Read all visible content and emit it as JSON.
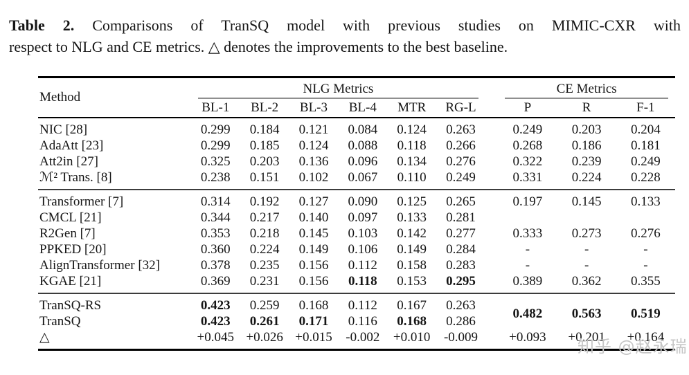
{
  "caption": {
    "label": "Table 2.",
    "line1_rest": "Comparisons of TranSQ model with previous studies on MIMIC-CXR with",
    "line2": "respect to NLG and CE metrics. △ denotes the improvements to the best baseline."
  },
  "table": {
    "method_header": "Method",
    "groups": [
      {
        "label": "NLG Metrics",
        "span": 6
      },
      {
        "label": "CE Metrics",
        "span": 3
      }
    ],
    "columns": [
      "BL-1",
      "BL-2",
      "BL-3",
      "BL-4",
      "MTR",
      "RG-L",
      "P",
      "R",
      "F-1"
    ],
    "blocks": [
      {
        "rows": [
          {
            "method": "NIC [28]",
            "cells": [
              "0.299",
              "0.184",
              "0.121",
              "0.084",
              "0.124",
              "0.263",
              "0.249",
              "0.203",
              "0.204"
            ]
          },
          {
            "method": "AdaAtt [23]",
            "cells": [
              "0.299",
              "0.185",
              "0.124",
              "0.088",
              "0.118",
              "0.266",
              "0.268",
              "0.186",
              "0.181"
            ]
          },
          {
            "method": "Att2in [27]",
            "cells": [
              "0.325",
              "0.203",
              "0.136",
              "0.096",
              "0.134",
              "0.276",
              "0.322",
              "0.239",
              "0.249"
            ]
          },
          {
            "method": "ℳ² Trans. [8]",
            "cells": [
              "0.238",
              "0.151",
              "0.102",
              "0.067",
              "0.110",
              "0.249",
              "0.331",
              "0.224",
              "0.228"
            ]
          }
        ]
      },
      {
        "rows": [
          {
            "method": "Transformer [7]",
            "cells": [
              "0.314",
              "0.192",
              "0.127",
              "0.090",
              "0.125",
              "0.265",
              "0.197",
              "0.145",
              "0.133"
            ]
          },
          {
            "method": "CMCL [21]",
            "cells": [
              "0.344",
              "0.217",
              "0.140",
              "0.097",
              "0.133",
              "0.281",
              "",
              "",
              ""
            ]
          },
          {
            "method": "R2Gen [7]",
            "cells": [
              "0.353",
              "0.218",
              "0.145",
              "0.103",
              "0.142",
              "0.277",
              "0.333",
              "0.273",
              "0.276"
            ]
          },
          {
            "method": "PPKED [20]",
            "cells": [
              "0.360",
              "0.224",
              "0.149",
              "0.106",
              "0.149",
              "0.284",
              "-",
              "-",
              "-"
            ]
          },
          {
            "method": "AlignTransformer [32]",
            "cells": [
              "0.378",
              "0.235",
              "0.156",
              "0.112",
              "0.158",
              "0.283",
              "-",
              "-",
              "-"
            ]
          },
          {
            "method": "KGAE [21]",
            "cells": [
              "0.369",
              "0.231",
              "0.156",
              {
                "t": "0.118",
                "bold": true
              },
              "0.153",
              {
                "t": "0.295",
                "bold": true
              },
              "0.389",
              "0.362",
              "0.355"
            ]
          }
        ]
      },
      {
        "rows": [
          {
            "method": "TranSQ-RS",
            "cells": [
              {
                "t": "0.423",
                "bold": true
              },
              "0.259",
              "0.168",
              "0.112",
              "0.167",
              "0.263",
              {
                "t": "0.482",
                "bold": true,
                "rowspan": 2
              },
              {
                "t": "0.563",
                "bold": true,
                "rowspan": 2
              },
              {
                "t": "0.519",
                "bold": true,
                "rowspan": 2
              }
            ]
          },
          {
            "method": "TranSQ",
            "cells": [
              {
                "t": "0.423",
                "bold": true
              },
              {
                "t": "0.261",
                "bold": true
              },
              {
                "t": "0.171",
                "bold": true
              },
              "0.116",
              {
                "t": "0.168",
                "bold": true
              },
              "0.286"
            ]
          },
          {
            "method": "△",
            "cells": [
              "+0.045",
              "+0.026",
              "+0.015",
              "-0.002",
              "+0.010",
              "-0.009",
              "+0.093",
              "+0.201",
              "+0.164"
            ]
          }
        ]
      }
    ]
  },
  "watermark": "知乎 @赵永瑞",
  "colors": {
    "background": "#ffffff",
    "text": "#151515",
    "heavy_rule": "#000000",
    "mid_rule": "#3c3c3c",
    "cmid_rule": "#8f8f8f",
    "watermark": "#c6c6c6"
  }
}
